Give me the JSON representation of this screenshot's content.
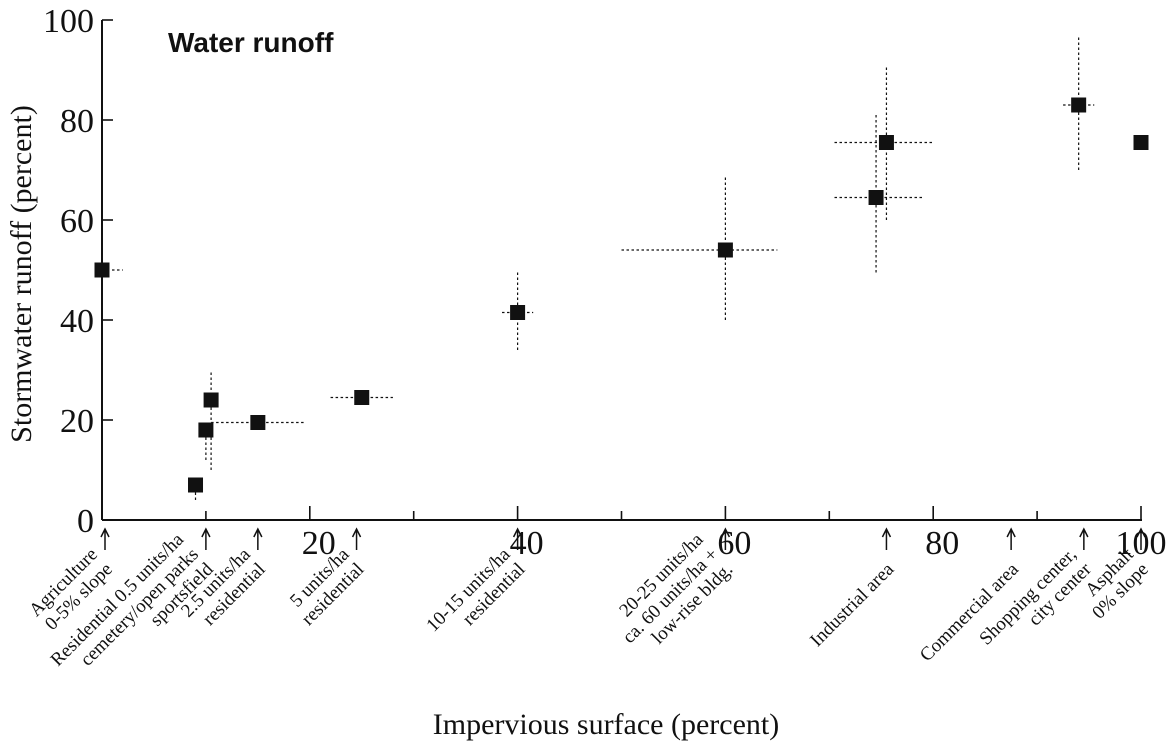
{
  "chart_data": {
    "type": "scatter",
    "title": "Water runoff",
    "xlabel": "Impervious surface (percent)",
    "ylabel": "Stormwater runoff (percent)",
    "xlim": [
      0,
      100
    ],
    "ylim": [
      0,
      100
    ],
    "x_ticks": [
      "20",
      "40",
      "60",
      "80",
      "100"
    ],
    "y_ticks": [
      "0",
      "20",
      "40",
      "60",
      "80",
      "100"
    ],
    "grid": false,
    "points": [
      {
        "x": 0,
        "y": 50,
        "x_err": [
          0,
          2
        ],
        "y_err": [
          30,
          60
        ]
      },
      {
        "x": 9,
        "y": 7,
        "x_err": [
          9,
          9
        ],
        "y_err": [
          4,
          9
        ]
      },
      {
        "x": 10,
        "y": 18,
        "x_err": [
          10,
          10
        ],
        "y_err": [
          12,
          19
        ]
      },
      {
        "x": 10.5,
        "y": 24,
        "x_err": [
          10.5,
          10.5
        ],
        "y_err": [
          10,
          30
        ]
      },
      {
        "x": 15,
        "y": 19.5,
        "x_err": [
          10.5,
          19.5
        ],
        "y_err": [
          19.5,
          19.5
        ]
      },
      {
        "x": 25,
        "y": 24.5,
        "x_err": [
          22,
          28
        ],
        "y_err": [
          24.5,
          24.5
        ]
      },
      {
        "x": 40,
        "y": 41.5,
        "x_err": [
          38.5,
          41.5
        ],
        "y_err": [
          34,
          50
        ]
      },
      {
        "x": 60,
        "y": 54,
        "x_err": [
          50,
          65
        ],
        "y_err": [
          40,
          69
        ]
      },
      {
        "x": 74.5,
        "y": 64.5,
        "x_err": [
          70.5,
          79
        ],
        "y_err": [
          49.5,
          81
        ]
      },
      {
        "x": 75.5,
        "y": 75.5,
        "x_err": [
          70.5,
          80
        ],
        "y_err": [
          60,
          90.5
        ]
      },
      {
        "x": 94,
        "y": 83,
        "x_err": [
          92.5,
          95.5
        ],
        "y_err": [
          70,
          96.5
        ]
      },
      {
        "x": 100,
        "y": 75.5,
        "x_err": [
          100,
          100
        ],
        "y_err": [
          75.5,
          75.5
        ]
      }
    ],
    "categories": [
      {
        "x": 0,
        "lines": [
          "Agriculture",
          "0-5% slope"
        ]
      },
      {
        "x": 10,
        "lines": [
          "Residential 0.5 units/ha",
          "cemetery/open parks",
          "sportsfield"
        ]
      },
      {
        "x": 15,
        "lines": [
          "2.5 units/ha",
          "residential"
        ]
      },
      {
        "x": 24.5,
        "lines": [
          "5 units/ha",
          "residential"
        ]
      },
      {
        "x": 40,
        "lines": [
          "10-15 units/ha",
          "residential"
        ]
      },
      {
        "x": 60,
        "lines": [
          "20-25 units/ha",
          "ca. 60 units/ha +",
          "low-rise bldg."
        ]
      },
      {
        "x": 75.5,
        "lines": [
          "Industrial area"
        ]
      },
      {
        "x": 87.5,
        "lines": [
          "Commercial area"
        ]
      },
      {
        "x": 94.5,
        "lines": [
          "Shopping center,",
          "city center"
        ]
      },
      {
        "x": 100,
        "lines": [
          "Asphalt",
          "0% slope"
        ]
      }
    ]
  }
}
